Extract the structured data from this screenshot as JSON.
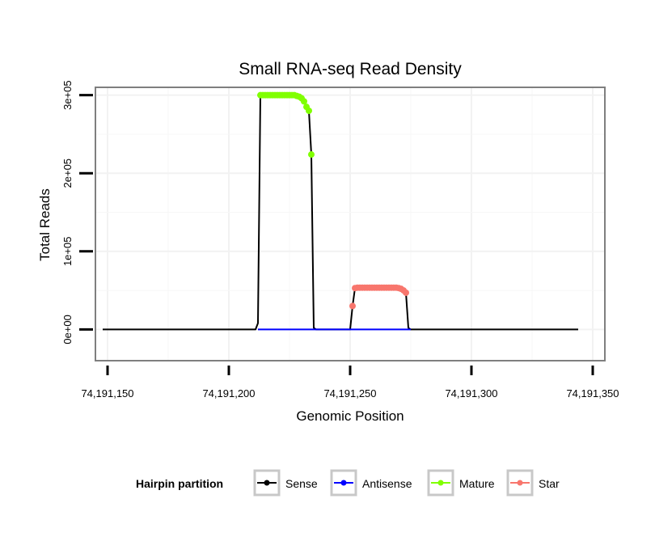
{
  "chart_data": {
    "type": "line",
    "title": "Small RNA-seq Read Density",
    "xlabel": "Genomic Position",
    "ylabel": "Total Reads",
    "xlim": [
      74191145,
      74191355
    ],
    "ylim": [
      -40000,
      310000
    ],
    "x_ticks": [
      74191150,
      74191200,
      74191250,
      74191300,
      74191350
    ],
    "x_tick_labels": [
      "74,191,150",
      "74,191,200",
      "74,191,250",
      "74,191,300",
      "74,191,350"
    ],
    "y_ticks": [
      0,
      100000,
      200000,
      300000
    ],
    "y_tick_labels": [
      "0e+00",
      "1e+05",
      "2e+05",
      "3e+05"
    ],
    "grid": true,
    "legend_position": "bottom",
    "legend_title": "Hairpin partition",
    "series": [
      {
        "name": "Sense",
        "color": "#000000",
        "marker": "line",
        "x": [
          74191148,
          74191211,
          74191212,
          74191213,
          74191214,
          74191215,
          74191216,
          74191217,
          74191218,
          74191219,
          74191220,
          74191221,
          74191222,
          74191223,
          74191224,
          74191225,
          74191226,
          74191227,
          74191228,
          74191229,
          74191230,
          74191231,
          74191232,
          74191233,
          74191234,
          74191235,
          74191236,
          74191250,
          74191251,
          74191252,
          74191253,
          74191254,
          74191255,
          74191256,
          74191257,
          74191258,
          74191259,
          74191260,
          74191261,
          74191262,
          74191263,
          74191264,
          74191265,
          74191266,
          74191267,
          74191268,
          74191269,
          74191270,
          74191271,
          74191272,
          74191273,
          74191274,
          74191275,
          74191344
        ],
        "y": [
          0,
          0,
          8000,
          300000,
          300000,
          300000,
          300000,
          300000,
          300000,
          300000,
          300000,
          300000,
          300000,
          300000,
          300000,
          300000,
          300000,
          300000,
          299000,
          298000,
          296000,
          292000,
          285000,
          280000,
          224000,
          2000,
          0,
          0,
          30000,
          53000,
          53500,
          53500,
          53500,
          53500,
          53500,
          53500,
          53500,
          53500,
          53500,
          53500,
          53500,
          53500,
          53500,
          53500,
          53500,
          53500,
          53500,
          53000,
          52000,
          50000,
          47000,
          2000,
          0,
          0
        ]
      },
      {
        "name": "Antisense",
        "color": "#0000ff",
        "marker": "line",
        "x": [
          74191212,
          74191275
        ],
        "y": [
          0,
          0
        ]
      },
      {
        "name": "Mature",
        "color": "#80ff00",
        "marker": "point",
        "x": [
          74191213,
          74191214,
          74191215,
          74191216,
          74191217,
          74191218,
          74191219,
          74191220,
          74191221,
          74191222,
          74191223,
          74191224,
          74191225,
          74191226,
          74191227,
          74191228,
          74191229,
          74191230,
          74191231,
          74191232,
          74191233,
          74191234
        ],
        "y": [
          300000,
          300000,
          300000,
          300000,
          300000,
          300000,
          300000,
          300000,
          300000,
          300000,
          300000,
          300000,
          300000,
          300000,
          300000,
          299000,
          298000,
          296000,
          292000,
          285000,
          280000,
          224000
        ]
      },
      {
        "name": "Star",
        "color": "#f8766d",
        "marker": "point",
        "x": [
          74191251,
          74191252,
          74191253,
          74191254,
          74191255,
          74191256,
          74191257,
          74191258,
          74191259,
          74191260,
          74191261,
          74191262,
          74191263,
          74191264,
          74191265,
          74191266,
          74191267,
          74191268,
          74191269,
          74191270,
          74191271,
          74191272,
          74191273
        ],
        "y": [
          30000,
          53000,
          53500,
          53500,
          53500,
          53500,
          53500,
          53500,
          53500,
          53500,
          53500,
          53500,
          53500,
          53500,
          53500,
          53500,
          53500,
          53500,
          53500,
          53000,
          52000,
          50000,
          47000
        ]
      }
    ]
  }
}
